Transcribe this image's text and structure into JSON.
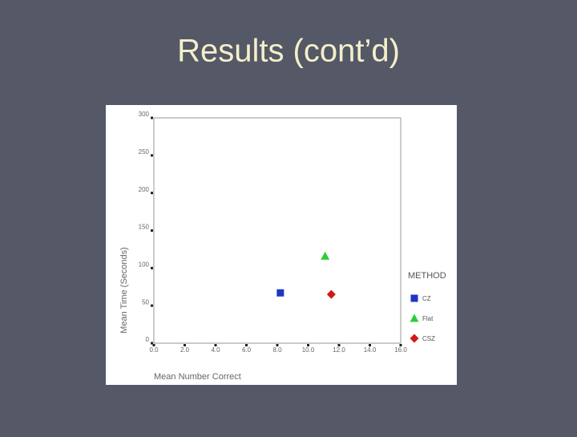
{
  "chart_data": {
    "type": "scatter",
    "title": "Results (cont’d)",
    "x_label": "Mean Number Correct",
    "y_label": "Mean Time (Seconds)",
    "legend_title": "METHOD",
    "legend": "right",
    "xlim": [
      0,
      16
    ],
    "xticks": [
      {
        "value": 0,
        "label": "0.0"
      },
      {
        "value": 2,
        "label": "2.0"
      },
      {
        "value": 4,
        "label": "4.0"
      },
      {
        "value": 6,
        "label": "6.0"
      },
      {
        "value": 8,
        "label": "8.0"
      },
      {
        "value": 10,
        "label": "10.0"
      },
      {
        "value": 12,
        "label": "12.0"
      },
      {
        "value": 14,
        "label": "14.0"
      },
      {
        "value": 16,
        "label": "16.0"
      }
    ],
    "ylim": [
      0,
      300
    ],
    "yticks": [
      0,
      50,
      100,
      150,
      200,
      250,
      300
    ],
    "series": [
      {
        "name": "CZ",
        "color": "#1f35c4",
        "marker": "square",
        "x": [
          8.2
        ],
        "values": [
          67
        ]
      },
      {
        "name": "Flat",
        "color": "#2fcc3a",
        "marker": "triangle",
        "x": [
          11.1
        ],
        "values": [
          116
        ]
      },
      {
        "name": "CSZ",
        "color": "#d01818",
        "marker": "diamond",
        "x": [
          11.5
        ],
        "values": [
          65
        ]
      }
    ]
  }
}
